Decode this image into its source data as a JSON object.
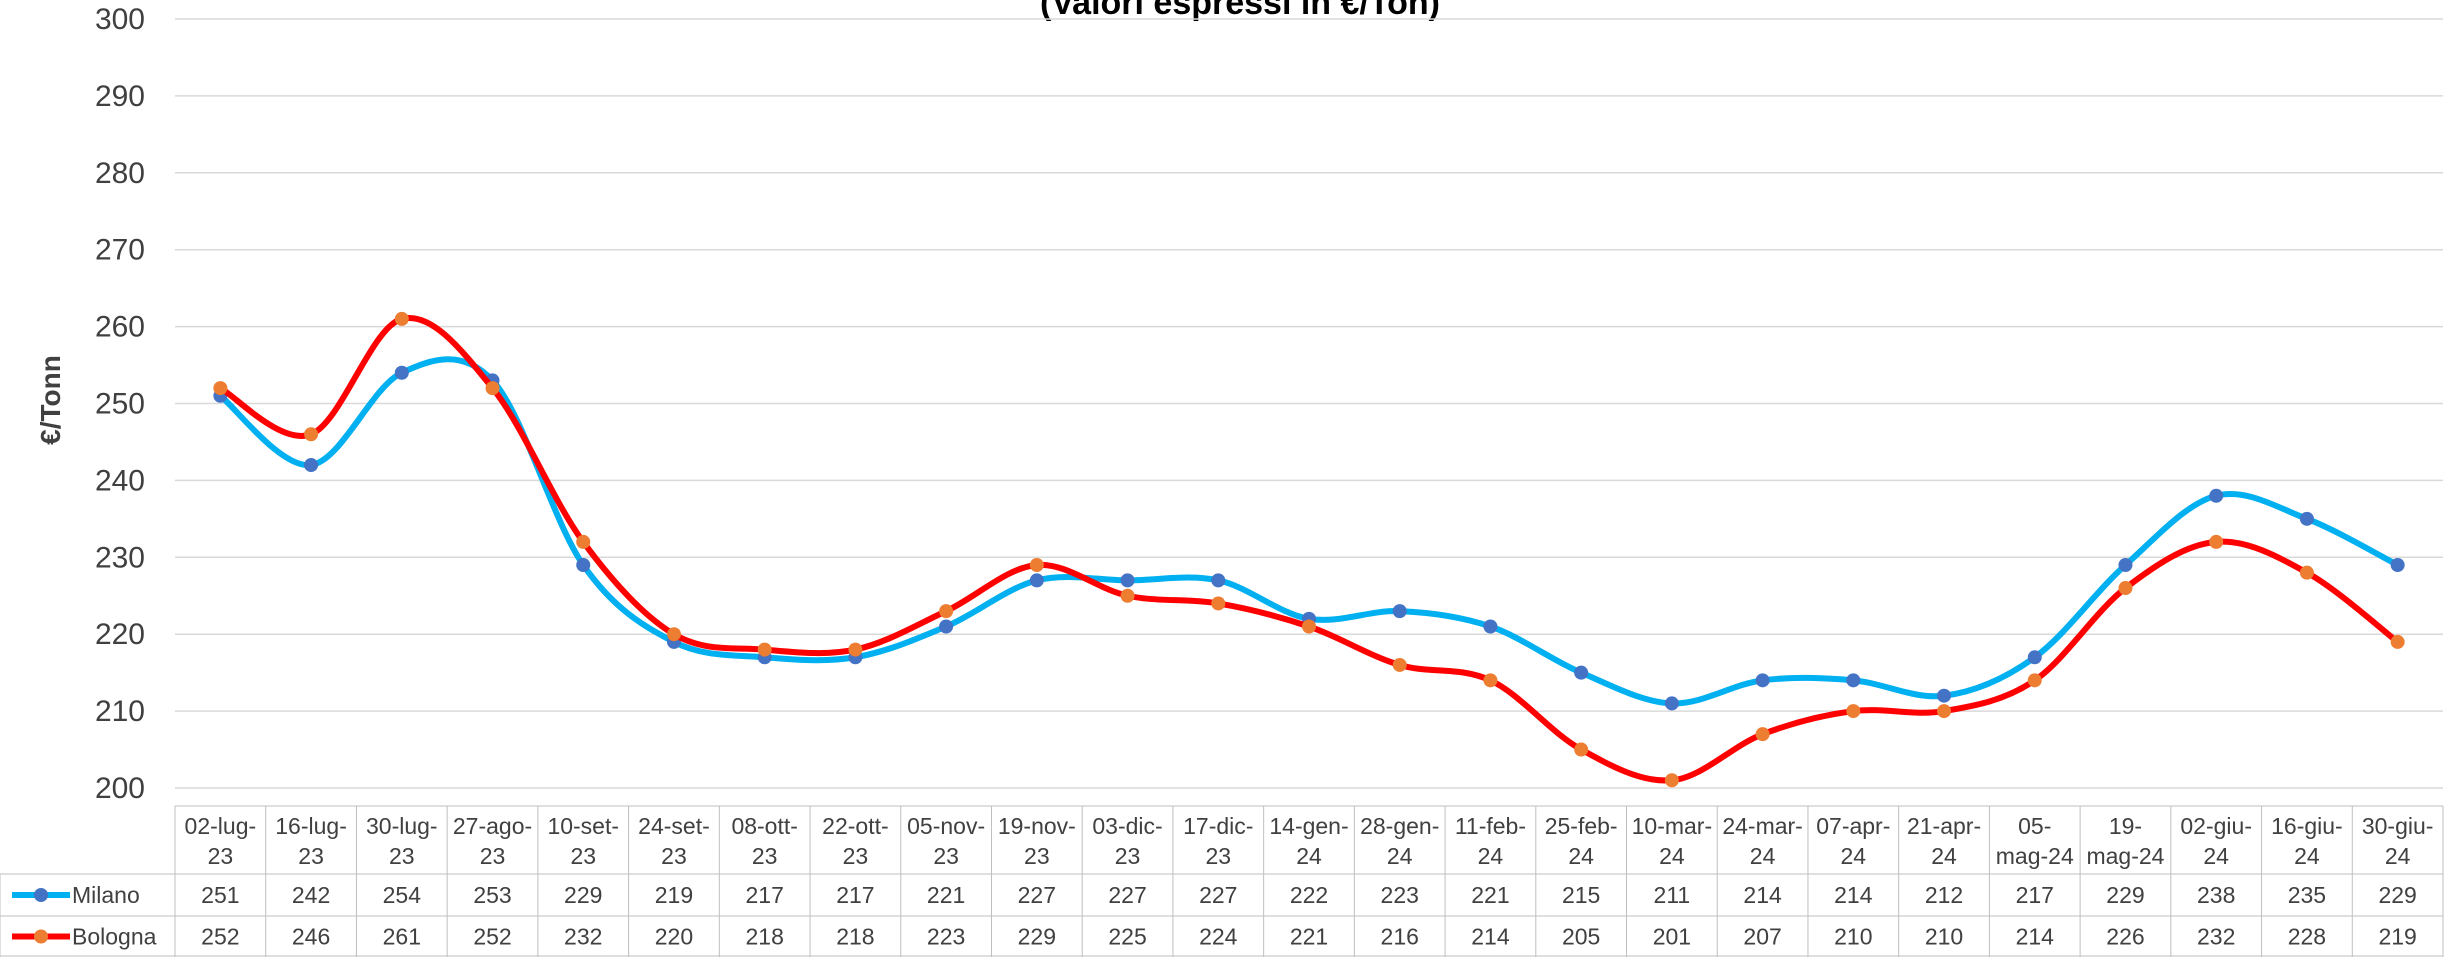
{
  "chart_data": {
    "type": "line",
    "title": "(Valori espressi in €/Ton)",
    "y_label": "€/Tonn",
    "categories": [
      "02-lug-23",
      "16-lug-23",
      "30-lug-23",
      "27-ago-23",
      "10-set-23",
      "24-set-23",
      "08-ott-23",
      "22-ott-23",
      "05-nov-23",
      "19-nov-23",
      "03-dic-23",
      "17-dic-23",
      "14-gen-24",
      "28-gen-24",
      "11-feb-24",
      "25-feb-24",
      "10-mar-24",
      "24-mar-24",
      "07-apr-24",
      "21-apr-24",
      "05-mag-24",
      "19-mag-24",
      "02-giu-24",
      "16-giu-24",
      "30-giu-24"
    ],
    "series": [
      {
        "name": "Milano",
        "color": "#00b0f0",
        "marker_color": "#4472c4",
        "values": [
          251,
          242,
          254,
          253,
          229,
          219,
          217,
          217,
          221,
          227,
          227,
          227,
          222,
          223,
          221,
          215,
          211,
          214,
          214,
          212,
          217,
          229,
          238,
          235,
          229
        ]
      },
      {
        "name": "Bologna",
        "color": "#ff0000",
        "marker_color": "#ed7d31",
        "values": [
          252,
          246,
          261,
          252,
          232,
          220,
          218,
          218,
          223,
          229,
          225,
          224,
          221,
          216,
          214,
          205,
          201,
          207,
          210,
          210,
          214,
          226,
          232,
          228,
          219
        ]
      }
    ],
    "ylim": [
      200,
      300
    ],
    "yticks": [
      200,
      210,
      220,
      230,
      240,
      250,
      260,
      270,
      280,
      290,
      300
    ],
    "grid": true,
    "smooth": true,
    "data_table": true
  }
}
